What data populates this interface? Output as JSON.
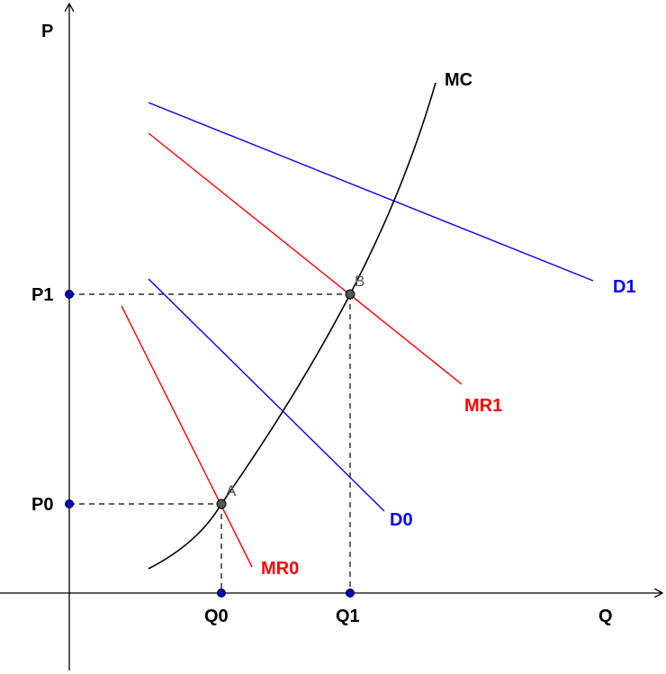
{
  "axes": {
    "y_label": "P",
    "x_label": "Q"
  },
  "curves": {
    "mc": {
      "label": "MC",
      "color": "#000000"
    },
    "d1": {
      "label": "D1",
      "color": "#0000ff"
    },
    "d0": {
      "label": "D0",
      "color": "#0000ff"
    },
    "mr1": {
      "label": "MR1",
      "color": "#ff0000"
    },
    "mr0": {
      "label": "MR0",
      "color": "#ff0000"
    }
  },
  "points": {
    "a": {
      "label": "A"
    },
    "b": {
      "label": "B"
    }
  },
  "ticks": {
    "p1": "P1",
    "p0": "P0",
    "q0": "Q0",
    "q1": "Q1"
  },
  "colors": {
    "axis_marker": "#0000cc",
    "equilibrium_point": "#555555"
  }
}
